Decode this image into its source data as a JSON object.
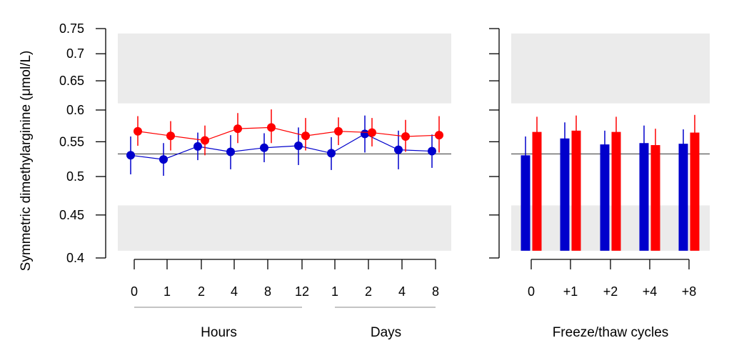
{
  "chart_data": [
    {
      "type": "line",
      "ylabel": "Symmetric dimethylarginine (μmol/L)",
      "ylim": [
        0.4,
        0.75
      ],
      "y_scale": "log",
      "y_ticks": [
        0.4,
        0.45,
        0.5,
        0.55,
        0.6,
        0.65,
        0.7,
        0.75
      ],
      "y_tick_labels": [
        "0.4",
        "0.45",
        "0.5",
        "0.55",
        "0.6",
        "0.65",
        "0.7",
        "0.75"
      ],
      "reference_line": 0.532,
      "shaded_bands": [
        [
          0.408,
          0.462
        ],
        [
          0.611,
          0.74
        ]
      ],
      "categories": [
        "0",
        "1",
        "2",
        "4",
        "8",
        "12",
        "1",
        "2",
        "4",
        "8"
      ],
      "groups": [
        {
          "label": "Hours",
          "from": 0,
          "to": 5
        },
        {
          "label": "Days",
          "from": 6,
          "to": 9
        }
      ],
      "series": [
        {
          "color": "#0000cc",
          "values": [
            0.53,
            0.524,
            0.543,
            0.535,
            0.541,
            0.544,
            0.533,
            0.562,
            0.538,
            0.536
          ],
          "err_low": [
            0.503,
            0.501,
            0.523,
            0.51,
            0.52,
            0.516,
            0.509,
            0.534,
            0.51,
            0.512
          ],
          "err_high": [
            0.558,
            0.548,
            0.564,
            0.56,
            0.563,
            0.572,
            0.557,
            0.591,
            0.567,
            0.561
          ]
        },
        {
          "color": "#ff0000",
          "values": [
            0.566,
            0.559,
            0.552,
            0.57,
            0.572,
            0.559,
            0.566,
            0.564,
            0.558,
            0.56
          ],
          "err_low": [
            0.544,
            0.537,
            0.53,
            0.548,
            0.548,
            0.537,
            0.545,
            0.543,
            0.535,
            0.534
          ],
          "err_high": [
            0.59,
            0.582,
            0.575,
            0.595,
            0.601,
            0.587,
            0.588,
            0.587,
            0.584,
            0.59
          ]
        }
      ]
    },
    {
      "type": "bar",
      "xlabel": "Freeze/thaw cycles",
      "ylim": [
        0.4,
        0.75
      ],
      "y_scale": "log",
      "reference_line": 0.532,
      "shaded_bands": [
        [
          0.408,
          0.462
        ],
        [
          0.611,
          0.74
        ]
      ],
      "categories": [
        "0",
        "+1",
        "+2",
        "+4",
        "+8"
      ],
      "bar_base": 0.408,
      "series": [
        {
          "color": "#0000cc",
          "values": [
            0.53,
            0.555,
            0.546,
            0.548,
            0.547
          ],
          "err_low": [
            0.503,
            0.53,
            0.522,
            0.524,
            0.524
          ],
          "err_high": [
            0.558,
            0.58,
            0.567,
            0.575,
            0.569
          ]
        },
        {
          "color": "#ff0000",
          "values": [
            0.565,
            0.567,
            0.565,
            0.545,
            0.564
          ],
          "err_low": [
            0.542,
            0.545,
            0.542,
            0.522,
            0.54
          ],
          "err_high": [
            0.589,
            0.591,
            0.589,
            0.57,
            0.592
          ]
        }
      ]
    }
  ]
}
